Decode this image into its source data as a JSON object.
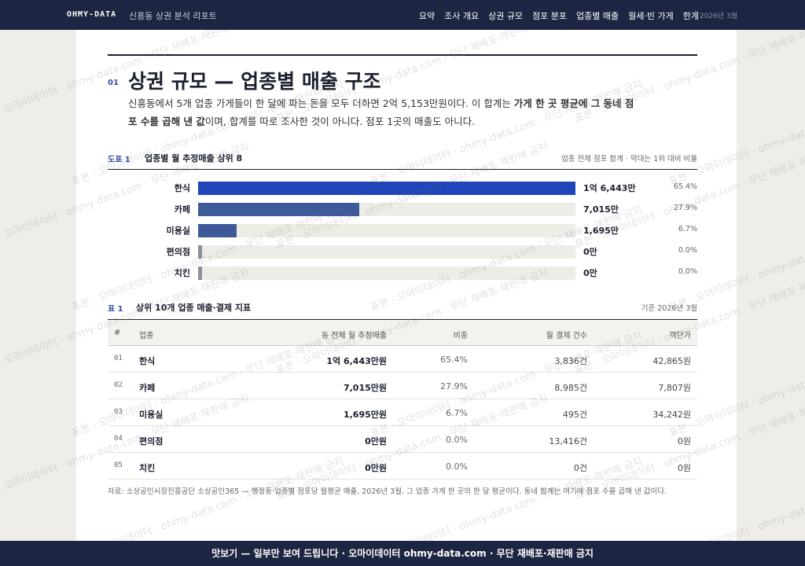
{
  "nav": {
    "brand": "OHMY-DATA",
    "subtitle": "신흥동 상권 분석 리포트",
    "links": [
      "요약",
      "조사 개요",
      "상권 규모",
      "점포 분포",
      "업종별 매출",
      "월세·빈 가게",
      "한계"
    ],
    "date": "2026년 3월"
  },
  "section": {
    "number": "01",
    "title": "상권 규모 — 업종별 매출 구조",
    "lead": [
      "신흥동에서 5개 업종 가게들이 한 달에 파는 돈을 모두 더하면 2억 5,153만원이다. 이 합계는 ",
      "가게 한 곳 평균에 그 동네 점포 수를 곱해 낸 값",
      "이며, 합계를 따로 조사한 것이 아니다. 점포 1곳의 매출도 아니다."
    ]
  },
  "chart": {
    "type": "bar",
    "label": "도표 1",
    "title": "업종별 월 추정매출 상위 8",
    "note": "업종 전체 점포 합계 · 막대는 1위 대비 비율",
    "categories": [
      "한식",
      "카페",
      "미용실",
      "편의점",
      "치킨"
    ],
    "values": [
      16443,
      7015,
      1695,
      0,
      0
    ],
    "value_labels": [
      "1억 6,443만",
      "7,015만",
      "1,695만",
      "0만",
      "0만"
    ],
    "share_labels": [
      "65.4%",
      "27.9%",
      "6.7%",
      "0.0%",
      "0.0%"
    ],
    "colors": [
      "#1f45b8",
      "#3e5a98",
      "#3e5a98",
      "#8b909b",
      "#8b909b"
    ],
    "track_color": "#eeece6"
  },
  "table": {
    "label": "표 1",
    "title": "상위 10개 업종 매출·결제 지표",
    "note": "기준 2026년 3월",
    "headers": [
      "#",
      "업종",
      "동 전체 월 추정매출",
      "비중",
      "월 결제 건수",
      "객단가"
    ],
    "rows": [
      [
        "01",
        "한식",
        "1억 6,443만원",
        "65.4%",
        "3,836건",
        "42,865원"
      ],
      [
        "02",
        "카페",
        "7,015만원",
        "27.9%",
        "8,985건",
        "7,807원"
      ],
      [
        "03",
        "미용실",
        "1,695만원",
        "6.7%",
        "495건",
        "34,242원"
      ],
      [
        "04",
        "편의점",
        "0만원",
        "0.0%",
        "13,416건",
        "0원"
      ],
      [
        "05",
        "치킨",
        "0만원",
        "0.0%",
        "0건",
        "0원"
      ]
    ]
  },
  "source": "자료: 소상공인시장진흥공단 소상공인365 — 행정동·업종별 점포당 월평균 매출, 2026년 3월. 그 업종 가게 한 곳의 한 달 평균이다. 동네 합계는 여기에 점포 수를 곱해 낸 값이다.",
  "watermark": "표본 · 오마이데이터 · ohmy-data.com · 무단 재배포·재판매 금지",
  "footer": "맛보기 — 일부만 보여 드립니다 · 오마이데이터 ohmy-data.com · 무단 재배포·재판매 금지"
}
